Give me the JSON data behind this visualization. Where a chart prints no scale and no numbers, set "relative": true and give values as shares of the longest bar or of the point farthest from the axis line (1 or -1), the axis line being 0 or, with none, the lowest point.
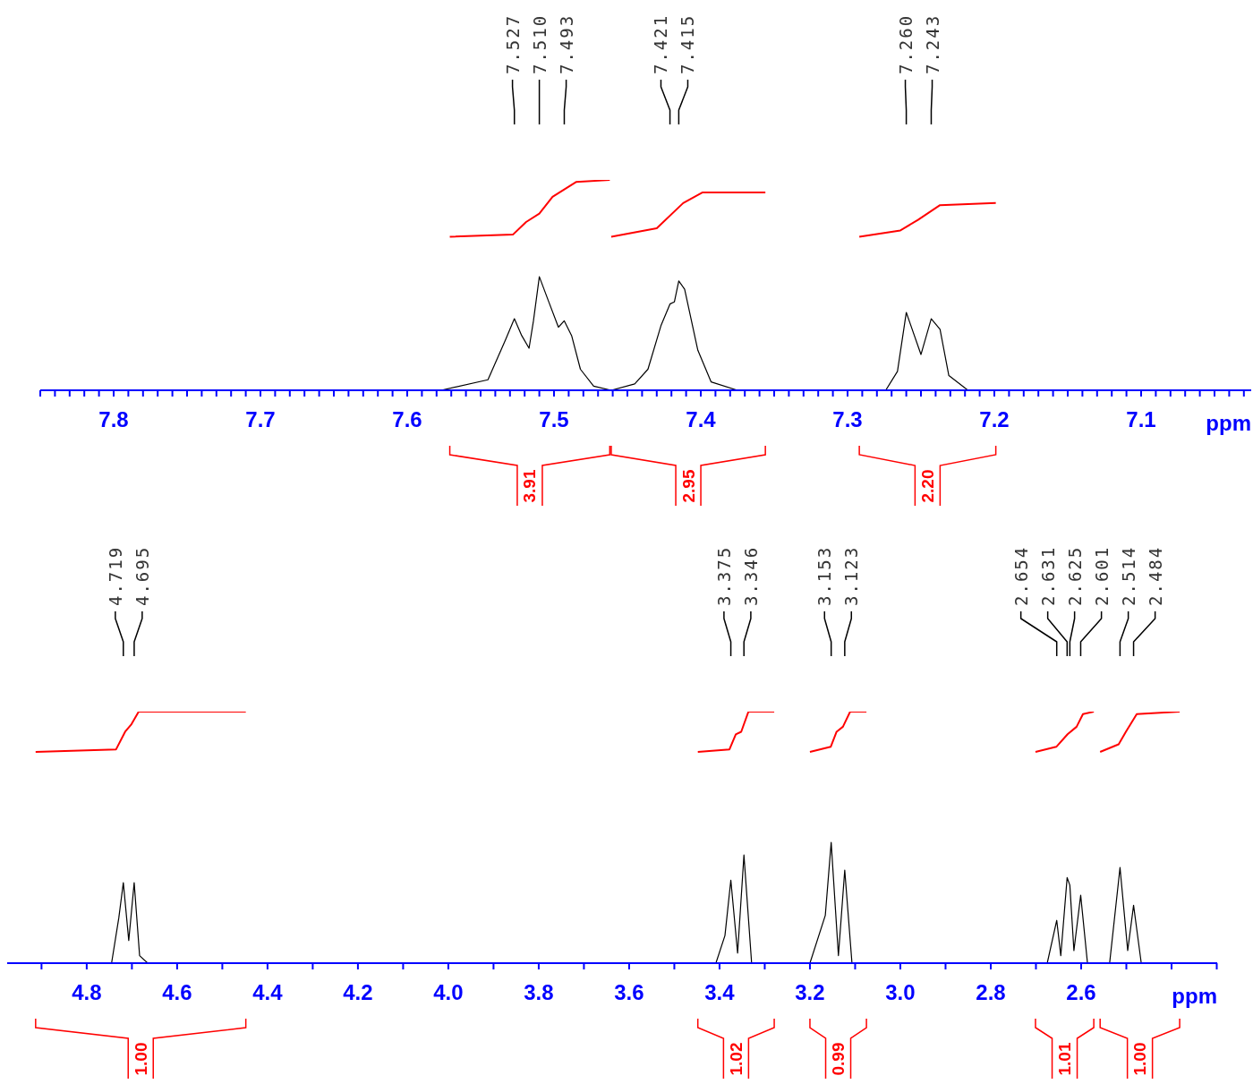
{
  "chart_data": [
    {
      "type": "line",
      "relative": true,
      "xlabel": "ppm",
      "xlim": [
        7.85,
        7.025
      ],
      "xticks": [
        {
          "value": 7.85,
          "label": null
        },
        {
          "value": 7.84,
          "label": null
        },
        {
          "value": 7.83,
          "label": null
        },
        {
          "value": 7.82,
          "label": null
        },
        {
          "value": 7.81,
          "label": null
        },
        7.8,
        {
          "value": 7.79,
          "label": null
        },
        {
          "value": 7.78,
          "label": null
        },
        {
          "value": 7.77,
          "label": null
        },
        {
          "value": 7.76,
          "label": null
        },
        {
          "value": 7.75,
          "label": null
        },
        {
          "value": 7.74,
          "label": null
        },
        {
          "value": 7.73,
          "label": null
        },
        {
          "value": 7.72,
          "label": null
        },
        {
          "value": 7.71,
          "label": null
        },
        7.7,
        {
          "value": 7.69,
          "label": null
        },
        {
          "value": 7.68,
          "label": null
        },
        {
          "value": 7.67,
          "label": null
        },
        {
          "value": 7.66,
          "label": null
        },
        {
          "value": 7.65,
          "label": null
        },
        {
          "value": 7.64,
          "label": null
        },
        {
          "value": 7.63,
          "label": null
        },
        {
          "value": 7.62,
          "label": null
        },
        {
          "value": 7.61,
          "label": null
        },
        7.6,
        {
          "value": 7.59,
          "label": null
        },
        {
          "value": 7.58,
          "label": null
        },
        {
          "value": 7.57,
          "label": null
        },
        {
          "value": 7.56,
          "label": null
        },
        {
          "value": 7.55,
          "label": null
        },
        {
          "value": 7.54,
          "label": null
        },
        {
          "value": 7.53,
          "label": null
        },
        {
          "value": 7.52,
          "label": null
        },
        {
          "value": 7.51,
          "label": null
        },
        7.5,
        {
          "value": 7.49,
          "label": null
        },
        {
          "value": 7.48,
          "label": null
        },
        {
          "value": 7.47,
          "label": null
        },
        {
          "value": 7.46,
          "label": null
        },
        {
          "value": 7.45,
          "label": null
        },
        {
          "value": 7.44,
          "label": null
        },
        {
          "value": 7.43,
          "label": null
        },
        {
          "value": 7.42,
          "label": null
        },
        {
          "value": 7.41,
          "label": null
        },
        7.4,
        {
          "value": 7.39,
          "label": null
        },
        {
          "value": 7.38,
          "label": null
        },
        {
          "value": 7.37,
          "label": null
        },
        {
          "value": 7.36,
          "label": null
        },
        {
          "value": 7.35,
          "label": null
        },
        {
          "value": 7.34,
          "label": null
        },
        {
          "value": 7.33,
          "label": null
        },
        {
          "value": 7.32,
          "label": null
        },
        {
          "value": 7.31,
          "label": null
        },
        7.3,
        {
          "value": 7.29,
          "label": null
        },
        {
          "value": 7.28,
          "label": null
        },
        {
          "value": 7.27,
          "label": null
        },
        {
          "value": 7.26,
          "label": null
        },
        {
          "value": 7.25,
          "label": null
        },
        {
          "value": 7.24,
          "label": null
        },
        {
          "value": 7.23,
          "label": null
        },
        {
          "value": 7.22,
          "label": null
        },
        {
          "value": 7.21,
          "label": null
        },
        7.2,
        {
          "value": 7.19,
          "label": null
        },
        {
          "value": 7.18,
          "label": null
        },
        {
          "value": 7.17,
          "label": null
        },
        {
          "value": 7.16,
          "label": null
        },
        {
          "value": 7.15,
          "label": null
        },
        {
          "value": 7.14,
          "label": null
        },
        {
          "value": 7.13,
          "label": null
        },
        {
          "value": 7.12,
          "label": null
        },
        {
          "value": 7.11,
          "label": null
        },
        7.1,
        {
          "value": 7.09,
          "label": null
        },
        {
          "value": 7.08,
          "label": null
        },
        {
          "value": 7.07,
          "label": null
        },
        {
          "value": 7.06,
          "label": null
        },
        {
          "value": 7.05,
          "label": null
        },
        {
          "value": 7.04,
          "label": null
        },
        {
          "value": 7.03,
          "label": null
        }
      ],
      "series": [
        {
          "color": "#000000",
          "x": [
            7.85,
            7.577,
            7.545,
            7.533,
            7.527,
            7.522,
            7.517,
            7.514,
            7.51,
            7.503,
            7.497,
            7.493,
            7.488,
            7.482,
            7.473,
            7.461,
            7.445,
            7.436,
            7.427,
            7.421,
            7.418,
            7.415,
            7.411,
            7.402,
            7.393,
            7.375,
            7.274,
            7.266,
            7.26,
            7.25,
            7.243,
            7.237,
            7.231,
            7.218,
            7.025
          ],
          "values": [
            0,
            0,
            0.05,
            0.24,
            0.34,
            0.26,
            0.2,
            0.33,
            0.54,
            0.41,
            0.3,
            0.33,
            0.26,
            0.1,
            0.02,
            0,
            0.03,
            0.1,
            0.31,
            0.41,
            0.42,
            0.52,
            0.48,
            0.19,
            0.04,
            0,
            0,
            0.09,
            0.37,
            0.17,
            0.34,
            0.29,
            0.07,
            0,
            0
          ]
        },
        {
          "color": "#ff0000",
          "x": [
            7.571,
            7.528,
            7.519,
            7.51,
            7.501,
            7.485,
            7.462
          ],
          "values": [
            0.73,
            0.74,
            0.8,
            0.84,
            0.92,
            0.99,
            1.0
          ]
        },
        {
          "color": "#ff0000",
          "x": [
            7.461,
            7.43,
            7.412,
            7.399,
            7.356
          ],
          "values": [
            0.73,
            0.77,
            0.89,
            0.94,
            0.94
          ]
        },
        {
          "color": "#ff0000",
          "x": [
            7.292,
            7.264,
            7.252,
            7.237,
            7.199
          ],
          "values": [
            0.73,
            0.76,
            0.81,
            0.88,
            0.89
          ]
        }
      ],
      "annotations": [
        {
          "text": "7.527",
          "x": 7.527
        },
        {
          "text": "7.510",
          "x": 7.51
        },
        {
          "text": "7.493",
          "x": 7.493
        },
        {
          "text": "7.421",
          "x": 7.421
        },
        {
          "text": "7.415",
          "x": 7.415
        },
        {
          "text": "7.260",
          "x": 7.26
        },
        {
          "text": "7.243",
          "x": 7.243
        },
        "3.91",
        "2.95",
        "2.20"
      ]
    },
    {
      "type": "line",
      "relative": true,
      "xlabel": "ppm",
      "xlim": [
        4.976,
        2.299
      ],
      "xticks": [
        {
          "value": 4.9,
          "label": null
        },
        4.8,
        {
          "value": 4.7,
          "label": null
        },
        4.6,
        {
          "value": 4.5,
          "label": null
        },
        4.4,
        {
          "value": 4.3,
          "label": null
        },
        4.2,
        {
          "value": 4.1,
          "label": null
        },
        {
          "value": 4,
          "label": "4.0"
        },
        {
          "value": 3.9,
          "label": null
        },
        3.8,
        {
          "value": 3.7,
          "label": null
        },
        3.6,
        {
          "value": 3.5,
          "label": null
        },
        3.4,
        {
          "value": 3.3,
          "label": null
        },
        3.2,
        {
          "value": 3.1,
          "label": null
        },
        {
          "value": 3,
          "label": "3.0"
        },
        {
          "value": 2.9,
          "label": null
        },
        2.8,
        {
          "value": 2.7,
          "label": null
        },
        2.6,
        {
          "value": 2.5,
          "label": null
        },
        {
          "value": 2.4,
          "label": null
        },
        {
          "value": 2.3,
          "label": null
        }
      ],
      "series": [
        {
          "color": "#000000",
          "x": [
            4.976,
            4.745,
            4.729,
            4.719,
            4.707,
            4.695,
            4.683,
            4.665,
            3.408,
            3.388,
            3.375,
            3.36,
            3.346,
            3.329,
            3.2,
            3.166,
            3.153,
            3.137,
            3.123,
            3.107,
            2.675,
            2.654,
            2.645,
            2.631,
            2.625,
            2.616,
            2.601,
            2.586,
            2.537,
            2.514,
            2.497,
            2.484,
            2.467,
            2.299
          ],
          "values": [
            0,
            0,
            0.18,
            0.32,
            0.09,
            0.32,
            0.03,
            0,
            0,
            0.11,
            0.33,
            0.04,
            0.43,
            0,
            0,
            0.19,
            0.48,
            0.03,
            0.37,
            0,
            0,
            0.17,
            0.03,
            0.34,
            0.31,
            0.05,
            0.27,
            0,
            0,
            0.38,
            0.05,
            0.23,
            0,
            0
          ]
        },
        {
          "color": "#ff0000",
          "x": [
            4.913,
            4.735,
            4.715,
            4.701,
            4.685,
            4.448
          ],
          "values": [
            0.84,
            0.85,
            0.92,
            0.95,
            1.0,
            1.0
          ]
        },
        {
          "color": "#ff0000",
          "x": [
            3.448,
            3.378,
            3.364,
            3.352,
            3.336,
            3.279
          ],
          "values": [
            0.84,
            0.85,
            0.91,
            0.92,
            1.0,
            1.0
          ]
        },
        {
          "color": "#ff0000",
          "x": [
            3.2,
            3.154,
            3.141,
            3.127,
            3.111,
            3.075
          ],
          "values": [
            0.84,
            0.86,
            0.92,
            0.94,
            1.0,
            1.0
          ]
        },
        {
          "color": "#ff0000",
          "x": [
            2.701,
            2.655,
            2.63,
            2.61,
            2.596,
            2.572
          ],
          "values": [
            0.84,
            0.86,
            0.91,
            0.94,
            0.99,
            1.0
          ]
        },
        {
          "color": "#ff0000",
          "x": [
            2.558,
            2.517,
            2.501,
            2.477,
            2.382
          ],
          "values": [
            0.84,
            0.87,
            0.92,
            0.99,
            1.0
          ]
        }
      ],
      "annotations": [
        {
          "text": "4.719",
          "x": 4.719
        },
        {
          "text": "4.695",
          "x": 4.695
        },
        {
          "text": "3.375",
          "x": 3.375
        },
        {
          "text": "3.346",
          "x": 3.346
        },
        {
          "text": "3.153",
          "x": 3.153
        },
        {
          "text": "3.123",
          "x": 3.123
        },
        {
          "text": "2.654",
          "x": 2.654
        },
        {
          "text": "2.631",
          "x": 2.631
        },
        {
          "text": "2.625",
          "x": 2.625
        },
        {
          "text": "2.601",
          "x": 2.601
        },
        {
          "text": "2.514",
          "x": 2.514
        },
        {
          "text": "2.484",
          "x": 2.484
        },
        "1.00",
        "1.02",
        "0.99",
        "1.01",
        "1.00"
      ]
    }
  ]
}
